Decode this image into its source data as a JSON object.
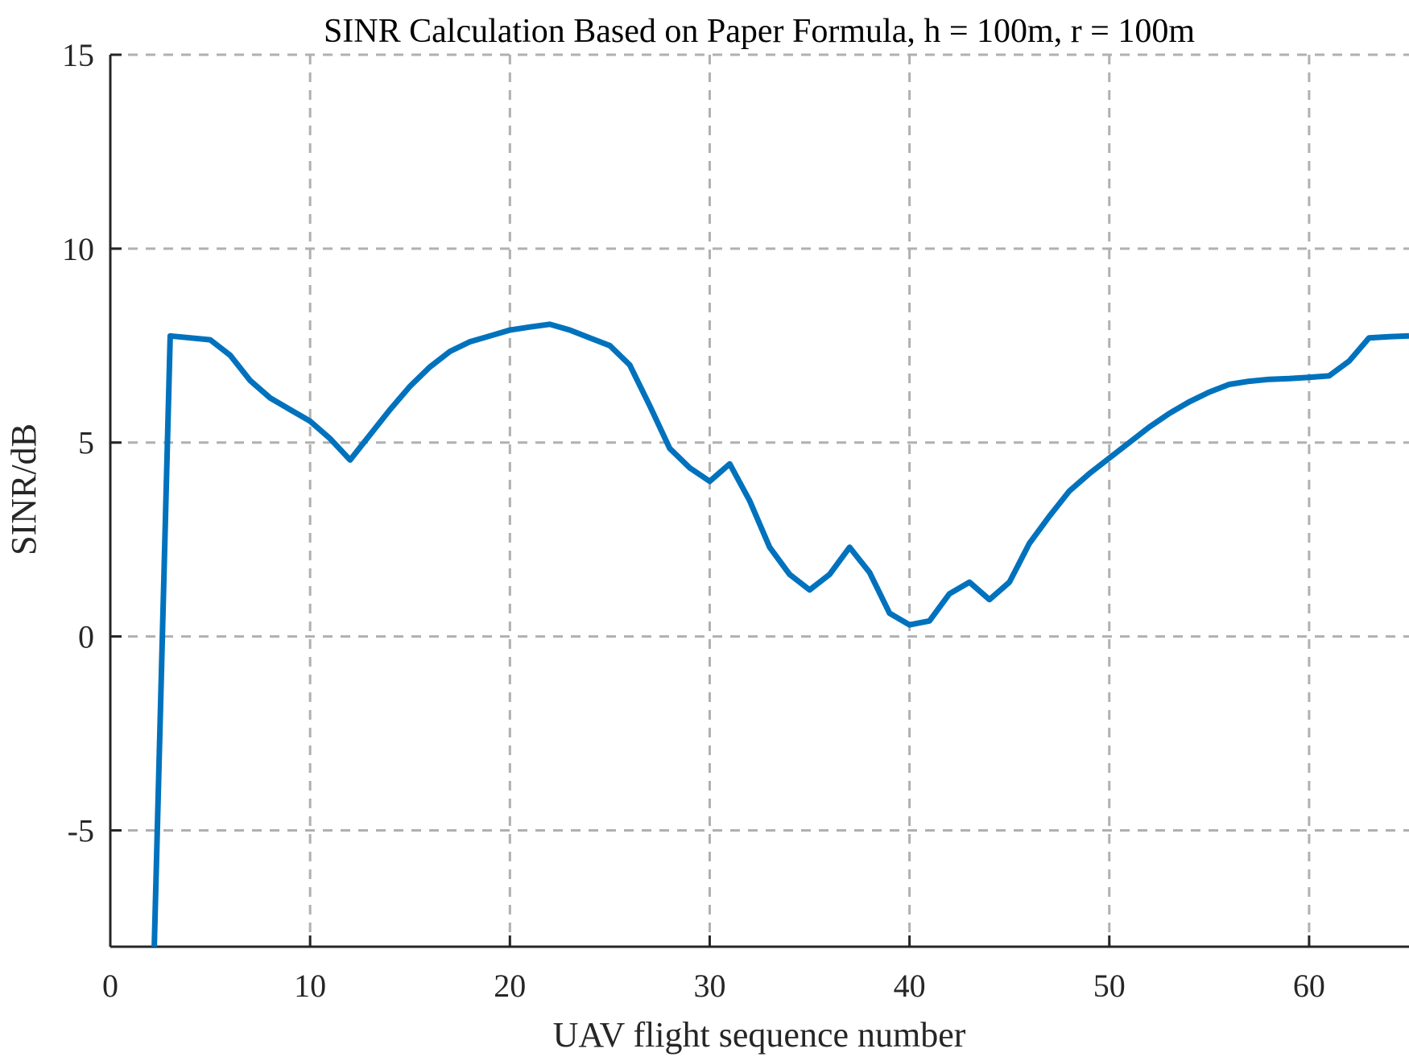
{
  "chart_data": {
    "type": "line",
    "title": "SINR Calculation Based on Paper Formula, h = 100m, r = 100m",
    "xlabel": "UAV flight sequence number",
    "ylabel": "SINR/dB",
    "xlim": [
      0,
      65
    ],
    "ylim": [
      -8,
      15
    ],
    "xticks": [
      0,
      10,
      20,
      30,
      40,
      50,
      60
    ],
    "yticks": [
      -5,
      0,
      5,
      10,
      15
    ],
    "xtick_labels": [
      "0",
      "10",
      "20",
      "30",
      "40",
      "50",
      "60"
    ],
    "ytick_labels": [
      "-5",
      "0",
      "5",
      "10",
      "15"
    ],
    "grid": true,
    "grid_style": "dashed",
    "series": [
      {
        "color": "#0072BD",
        "x": [
          2.2,
          3,
          4,
          5,
          6,
          7,
          8,
          9,
          10,
          11,
          12,
          13,
          14,
          15,
          16,
          17,
          18,
          19,
          20,
          21,
          22,
          23,
          24,
          25,
          26,
          27,
          28,
          29,
          30,
          31,
          32,
          33,
          34,
          35,
          36,
          37,
          38,
          39,
          40,
          41,
          42,
          43,
          44,
          45,
          46,
          47,
          48,
          49,
          50,
          51,
          52,
          53,
          54,
          55,
          56,
          57,
          58,
          59,
          60,
          61,
          62,
          63,
          64,
          65
        ],
        "y": [
          -8,
          7.75,
          7.7,
          7.65,
          7.25,
          6.6,
          6.15,
          5.85,
          5.55,
          5.1,
          4.55,
          5.2,
          5.85,
          6.45,
          6.95,
          7.35,
          7.6,
          7.75,
          7.9,
          7.98,
          8.05,
          7.9,
          7.7,
          7.5,
          7.0,
          5.95,
          4.85,
          4.35,
          4.0,
          4.45,
          3.5,
          2.3,
          1.6,
          1.2,
          1.6,
          2.3,
          1.65,
          0.6,
          0.3,
          0.4,
          1.1,
          1.4,
          0.95,
          1.4,
          2.4,
          3.1,
          3.75,
          4.2,
          4.6,
          5.0,
          5.4,
          5.75,
          6.05,
          6.3,
          6.5,
          6.58,
          6.63,
          6.65,
          6.68,
          6.72,
          7.1,
          7.7,
          7.73,
          7.75
        ]
      }
    ]
  }
}
